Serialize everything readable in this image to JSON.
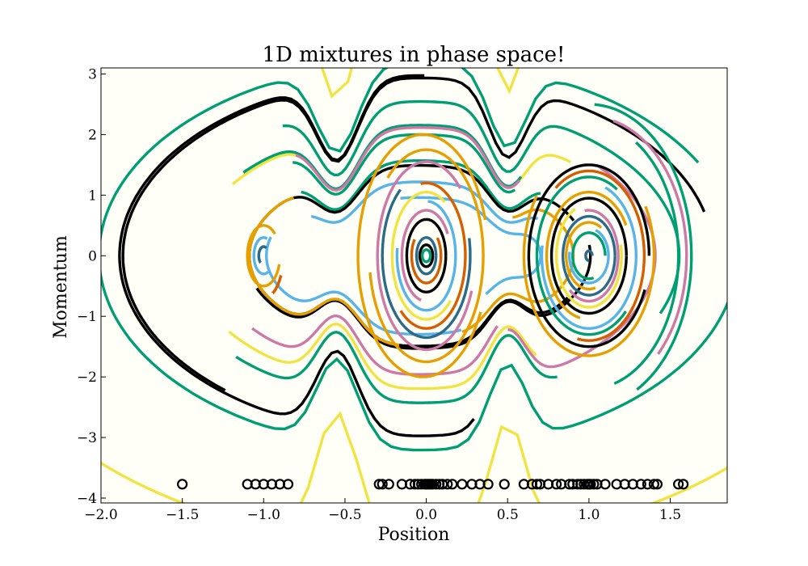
{
  "chart_data": {
    "type": "line",
    "title": "1D mixtures in phase space!",
    "xlabel": "Position",
    "ylabel": "Momentum",
    "xlim": [
      -2.0,
      1.85
    ],
    "ylim": [
      -4.08,
      3.1
    ],
    "xticks": [
      -2.0,
      -1.5,
      -1.0,
      -0.5,
      0.0,
      0.5,
      1.0,
      1.5
    ],
    "xtick_labels": [
      "−2.0",
      "−1.5",
      "−1.0",
      "−0.5",
      "0.0",
      "0.5",
      "1.0",
      "1.5"
    ],
    "yticks": [
      3,
      2,
      1,
      0,
      -1,
      -2,
      -3,
      -4
    ],
    "ytick_labels": [
      "3",
      "2",
      "1",
      "0",
      "−1",
      "−2",
      "−3",
      "−4"
    ],
    "grid": false,
    "legend": "none",
    "background_color": "#fffff8",
    "palette": [
      "#000000",
      "#e69f00",
      "#56b4e9",
      "#009e73",
      "#f0e442",
      "#d55e00",
      "#cc79a7",
      "#2b6a8a"
    ],
    "mixture_centers": [
      -1.0,
      0.0,
      1.0
    ],
    "series": [
      {
        "color": "#f0e442",
        "kind": "contour",
        "E": 5.6,
        "t0": 0.55,
        "t1": 6.25
      },
      {
        "color": "#f0e442",
        "kind": "contour",
        "E": 2.2,
        "t0": 0.82,
        "t1": 2.55
      },
      {
        "color": "#f0e442",
        "kind": "contour",
        "E": 2.3,
        "t0": 3.75,
        "t1": 5.25
      },
      {
        "color": "#009e73",
        "kind": "contour",
        "E": 3.6,
        "t0": 0.5,
        "t1": 6.05
      },
      {
        "color": "#009e73",
        "kind": "contour",
        "E": 2.25,
        "t0": 1.1,
        "t1": 2.45
      },
      {
        "color": "#009e73",
        "kind": "contour",
        "E": 2.05,
        "t0": 1.1,
        "t1": 2.2
      },
      {
        "color": "#009e73",
        "kind": "contour",
        "E": 2.6,
        "t0": 3.9,
        "t1": 5.3
      },
      {
        "color": "#009e73",
        "kind": "contour",
        "E": 2.75,
        "t0": 5.9,
        "t1": 8.4
      },
      {
        "color": "#009e73",
        "kind": "contour",
        "E": 1.5,
        "t0": 0.8,
        "t1": 2.3
      },
      {
        "color": "#000000",
        "kind": "contour",
        "E": 3.25,
        "t0": 0.25,
        "t1": 4.0
      },
      {
        "color": "#000000",
        "kind": "contour",
        "E": 3.3,
        "t0": 1.55,
        "t1": 4.9
      },
      {
        "color": "#000000",
        "kind": "contour",
        "E": 1.4,
        "t0": 0.4,
        "t1": 5.8
      },
      {
        "color": "#000000",
        "kind": "contour",
        "E": 1.45,
        "t0": 3.5,
        "t1": 6.4
      },
      {
        "color": "#cc79a7",
        "kind": "contour",
        "E": 2.2,
        "t0": 1.1,
        "t1": 2.15
      },
      {
        "color": "#cc79a7",
        "kind": "contour",
        "E": 2.0,
        "t0": 3.8,
        "t1": 5.1
      },
      {
        "color": "#cc79a7",
        "kind": "contour",
        "E": 2.4,
        "t0": 5.1,
        "t1": 7.0
      },
      {
        "color": "#e69f00",
        "kind": "contour",
        "E": 1.4,
        "t0": 2.4,
        "t1": 4.6
      },
      {
        "color": "#e69f00",
        "kind": "contour",
        "E": 1.2,
        "t0": 5.0,
        "t1": 7.2
      },
      {
        "color": "#56b4e9",
        "kind": "contour",
        "E": 1.15,
        "t0": 2.9,
        "t1": 5.0
      },
      {
        "color": "#56b4e9",
        "kind": "contour",
        "E": 1.05,
        "t0": 0.6,
        "t1": 2.4
      },
      {
        "color": "#56b4e9",
        "kind": "contour",
        "E": 0.72,
        "t0": 5.3,
        "t1": 8.0
      },
      {
        "color": "#e69f00",
        "kind": "ellipse",
        "cx": -1.0,
        "a": 0.1,
        "b": 0.5,
        "t0": 0.8,
        "t1": 6.0
      },
      {
        "color": "#56b4e9",
        "kind": "ellipse",
        "cx": -1.0,
        "a": 0.06,
        "b": 0.3,
        "t0": 1.2,
        "t1": 5.2
      },
      {
        "color": "#2b6a8a",
        "kind": "ellipse",
        "cx": -1.0,
        "a": 0.03,
        "b": 0.15,
        "t0": 1.0,
        "t1": 4.0
      },
      {
        "color": "#d55e00",
        "kind": "ellipse",
        "cx": -1.0,
        "a": 0.12,
        "b": 0.7,
        "t0": 5.2,
        "t1": 5.8
      },
      {
        "color": "#e69f00",
        "kind": "ellipse",
        "cx": -0.02,
        "a": 0.4,
        "b": 2.0,
        "t0": 0.3,
        "t1": 5.8
      },
      {
        "color": "#e69f00",
        "kind": "ellipse",
        "cx": 0.0,
        "a": 0.35,
        "b": 1.75,
        "t0": 3.3,
        "t1": 8.6
      },
      {
        "color": "#cc79a7",
        "kind": "ellipse",
        "cx": 0.0,
        "a": 0.3,
        "b": 1.55,
        "t0": 0.8,
        "t1": 5.9
      },
      {
        "color": "#2b6a8a",
        "kind": "ellipse",
        "cx": 0.0,
        "a": 0.27,
        "b": 1.35,
        "t0": 2.2,
        "t1": 6.5
      },
      {
        "color": "#d55e00",
        "kind": "ellipse",
        "cx": 0.0,
        "a": 0.24,
        "b": 1.2,
        "t0": 4.0,
        "t1": 8.0
      },
      {
        "color": "#f0e442",
        "kind": "ellipse",
        "cx": 0.0,
        "a": 0.21,
        "b": 1.05,
        "t0": 1.0,
        "t1": 5.5
      },
      {
        "color": "#56b4e9",
        "kind": "ellipse",
        "cx": 0.0,
        "a": 0.18,
        "b": 0.9,
        "t0": 3.0,
        "t1": 7.8
      },
      {
        "color": "#cc79a7",
        "kind": "ellipse",
        "cx": 0.0,
        "a": 0.15,
        "b": 0.75,
        "t0": 0.5,
        "t1": 4.5
      },
      {
        "color": "#000000",
        "kind": "ellipse",
        "cx": 0.0,
        "a": 0.12,
        "b": 0.6,
        "t0": 0.0,
        "t1": 6.28
      },
      {
        "color": "#d55e00",
        "kind": "ellipse",
        "cx": 0.0,
        "a": 0.09,
        "b": 0.45,
        "t0": 2.5,
        "t1": 7.0
      },
      {
        "color": "#2b6a8a",
        "kind": "ellipse",
        "cx": 0.0,
        "a": 0.06,
        "b": 0.3,
        "t0": 0.0,
        "t1": 6.28
      },
      {
        "color": "#000000",
        "kind": "ellipse",
        "cx": 0.0,
        "a": 0.04,
        "b": 0.18,
        "t0": 0.0,
        "t1": 6.28
      },
      {
        "color": "#009e73",
        "kind": "ellipse",
        "cx": 0.0,
        "a": 0.025,
        "b": 0.1,
        "t0": 0.0,
        "t1": 6.28
      },
      {
        "color": "#000000",
        "kind": "ellipse",
        "cx": 1.0,
        "a": 0.37,
        "b": 1.5,
        "t0": 0.0,
        "t1": 5.9
      },
      {
        "color": "#e69f00",
        "kind": "ellipse",
        "cx": 1.0,
        "a": 0.4,
        "b": 1.65,
        "t0": 2.5,
        "t1": 6.8
      },
      {
        "color": "#d55e00",
        "kind": "ellipse",
        "cx": 1.0,
        "a": 0.34,
        "b": 1.4,
        "t0": 4.5,
        "t1": 8.5
      },
      {
        "color": "#009e73",
        "kind": "ellipse",
        "cx": 1.0,
        "a": 0.32,
        "b": 1.3,
        "t0": 1.0,
        "t1": 5.5
      },
      {
        "color": "#56b4e9",
        "kind": "ellipse",
        "cx": 1.0,
        "a": 0.29,
        "b": 1.2,
        "t0": 3.0,
        "t1": 7.5
      },
      {
        "color": "#e69f00",
        "kind": "ellipse",
        "cx": 1.0,
        "a": 0.26,
        "b": 1.05,
        "t0": 0.5,
        "t1": 4.5
      },
      {
        "color": "#000000",
        "kind": "ellipse",
        "cx": 1.0,
        "a": 0.23,
        "b": 0.95,
        "t0": 0.0,
        "t1": 6.28
      },
      {
        "color": "#f0e442",
        "kind": "ellipse",
        "cx": 1.0,
        "a": 0.2,
        "b": 0.85,
        "t0": 2.0,
        "t1": 6.5
      },
      {
        "color": "#cc79a7",
        "kind": "ellipse",
        "cx": 1.0,
        "a": 0.18,
        "b": 0.75,
        "t0": 4.0,
        "t1": 8.0
      },
      {
        "color": "#2b6a8a",
        "kind": "ellipse",
        "cx": 1.0,
        "a": 0.16,
        "b": 0.65,
        "t0": 0.0,
        "t1": 6.28
      },
      {
        "color": "#e69f00",
        "kind": "ellipse",
        "cx": 1.0,
        "a": 0.14,
        "b": 0.55,
        "t0": 1.0,
        "t1": 5.0
      },
      {
        "color": "#56b4e9",
        "kind": "ellipse",
        "cx": 1.0,
        "a": 0.12,
        "b": 0.45,
        "t0": 3.0,
        "t1": 7.5
      },
      {
        "color": "#009e73",
        "kind": "ellipse",
        "cx": 1.0,
        "a": 0.1,
        "b": 0.38,
        "t0": 0.0,
        "t1": 5.0
      },
      {
        "color": "#2b6a8a",
        "kind": "ellipse",
        "cx": 1.0,
        "a": 0.02,
        "b": 0.08,
        "t0": 0.0,
        "t1": 4.8
      },
      {
        "color": "#009e73",
        "kind": "ellipse",
        "cx": 1.0,
        "a": 0.55,
        "b": 2.2,
        "t0": 5.0,
        "t1": 7.3
      },
      {
        "color": "#cc79a7",
        "kind": "ellipse",
        "cx": 1.0,
        "a": 0.6,
        "b": 2.3,
        "t0": 5.5,
        "t1": 7.6
      },
      {
        "color": "#009e73",
        "kind": "ellipse",
        "cx": 1.0,
        "a": 0.63,
        "b": 2.5,
        "t0": 5.2,
        "t1": 7.8
      }
    ],
    "scatter": {
      "y": -3.77,
      "x": [
        -1.5,
        -1.1,
        -1.05,
        -1.0,
        -0.95,
        -0.9,
        -0.85,
        -0.29,
        -0.27,
        -0.23,
        -0.15,
        -0.1,
        -0.07,
        -0.05,
        -0.03,
        -0.01,
        0.0,
        0.01,
        0.02,
        0.03,
        0.04,
        0.06,
        0.08,
        0.1,
        0.13,
        0.16,
        0.22,
        0.28,
        0.33,
        0.38,
        0.48,
        0.6,
        0.65,
        0.68,
        0.7,
        0.75,
        0.8,
        0.83,
        0.88,
        0.9,
        0.93,
        0.95,
        0.97,
        0.99,
        1.0,
        1.01,
        1.03,
        1.05,
        1.1,
        1.17,
        1.22,
        1.27,
        1.32,
        1.36,
        1.4,
        1.42,
        1.55,
        1.58
      ]
    }
  }
}
